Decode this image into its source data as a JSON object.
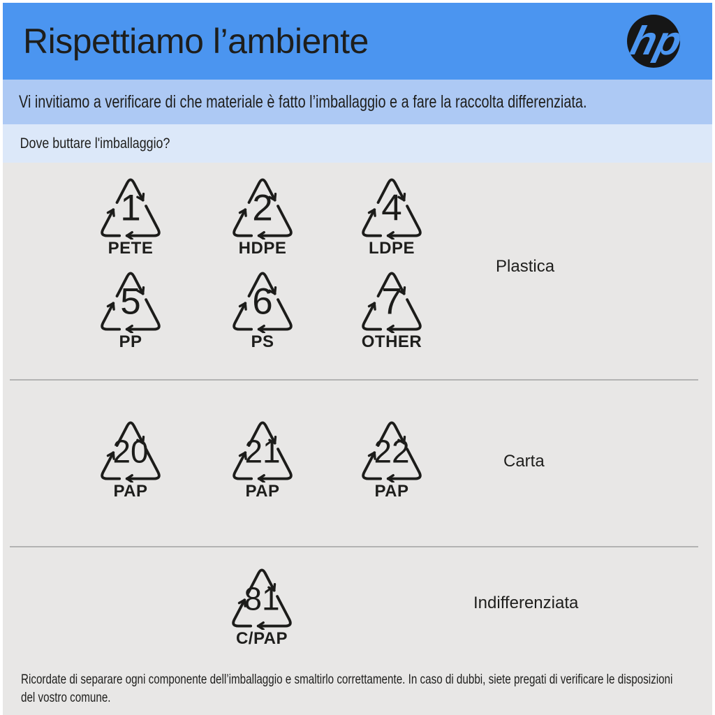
{
  "colors": {
    "header_bg": "#4b95f0",
    "banner_bg": "#adc9f4",
    "question_bg": "#dce8f9",
    "main_bg": "#e8e7e6",
    "ink": "#1e1e1c",
    "divider": "#b3b3b3",
    "logo_bg": "#161616",
    "symbol": "#1c1c1a"
  },
  "header": {
    "title": "Rispettiamo l’ambiente",
    "logo": "hp-logo"
  },
  "banner": {
    "text": "Vi invitiamo a verificare di che materiale è fatto l’imballaggio e a fare la raccolta differenziata."
  },
  "question": {
    "text": "Dove buttare l'imballaggio?"
  },
  "sections": [
    {
      "name": "plastica",
      "label": "Plastica",
      "rows": [
        [
          {
            "code": "1",
            "material": "PETE"
          },
          {
            "code": "2",
            "material": "HDPE"
          },
          {
            "code": "4",
            "material": "LDPE"
          }
        ],
        [
          {
            "code": "5",
            "material": "PP"
          },
          {
            "code": "6",
            "material": "PS"
          },
          {
            "code": "7",
            "material": "OTHER"
          }
        ]
      ]
    },
    {
      "name": "carta",
      "label": "Carta",
      "rows": [
        [
          {
            "code": "20",
            "material": "PAP"
          },
          {
            "code": "21",
            "material": "PAP"
          },
          {
            "code": "22",
            "material": "PAP"
          }
        ]
      ]
    },
    {
      "name": "indifferenziata",
      "label": "Indifferenziata",
      "rows": [
        [
          {
            "code": "81",
            "material": "C/PAP"
          }
        ]
      ]
    }
  ],
  "footer": {
    "text": "Ricordate di separare ogni componente dell’imballaggio e smaltirlo correttamente. In caso di dubbi, siete pregati di verificare le disposizioni del vostro comune."
  }
}
